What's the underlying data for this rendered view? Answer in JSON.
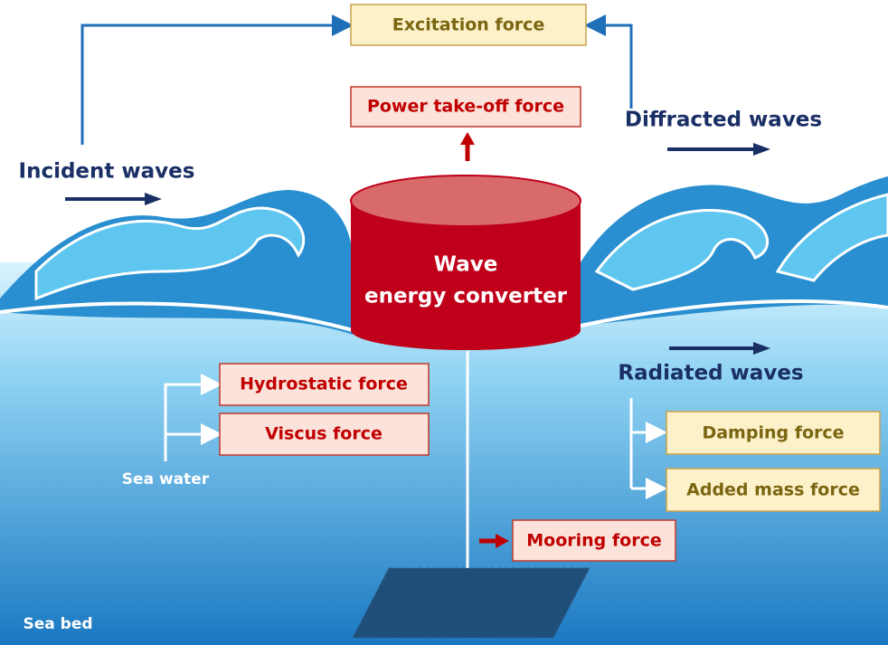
{
  "labels": {
    "excitation": "Excitation force",
    "power_take_off": "Power take-off force",
    "diffracted": "Diffracted waves",
    "incident": "Incident waves",
    "converter_line1": "Wave",
    "converter_line2": "energy converter",
    "hydrostatic": "Hydrostatic force",
    "viscus": "Viscus force",
    "sea_water": "Sea water",
    "radiated": "Radiated waves",
    "damping": "Damping force",
    "added_mass": "Added mass force",
    "mooring": "Mooring force",
    "sea_bed": "Sea bed"
  }
}
